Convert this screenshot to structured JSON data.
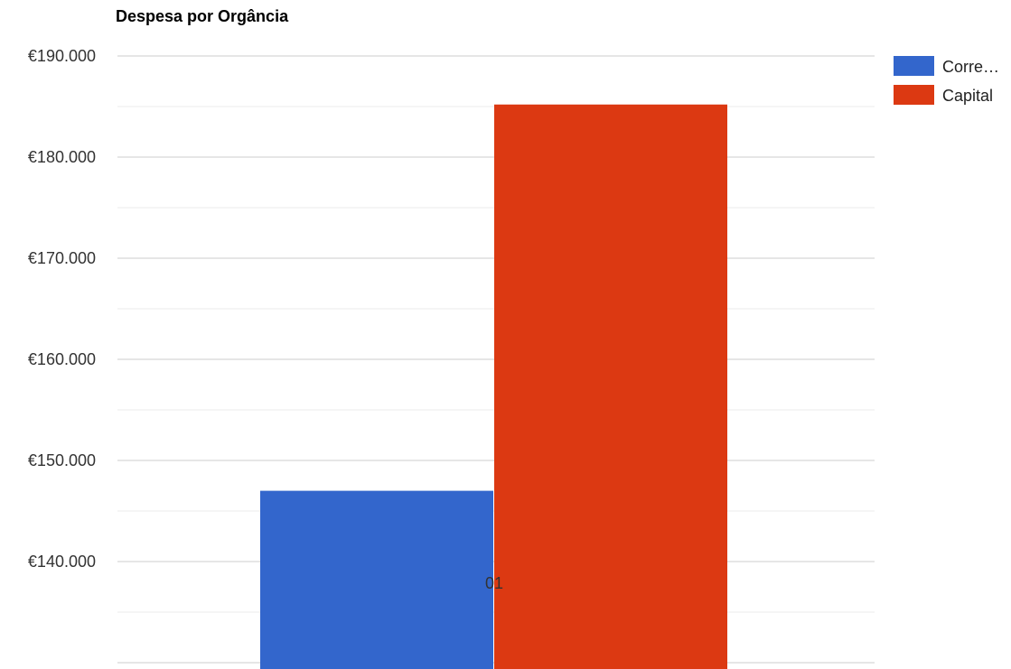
{
  "chart_data": {
    "type": "bar",
    "title": "Despesa por Orgância",
    "categories": [
      "01"
    ],
    "series": [
      {
        "name": "Corre…",
        "values": [
          147000
        ],
        "color": "#3366cc"
      },
      {
        "name": "Capital",
        "values": [
          185200
        ],
        "color": "#dc3912"
      }
    ],
    "ylim": [
      130000,
      190000
    ],
    "yticks": [
      140000,
      150000,
      160000,
      170000,
      180000,
      190000
    ],
    "ytick_labels": [
      "€140.000",
      "€150.000",
      "€160.000",
      "€170.000",
      "€180.000",
      "€190.000"
    ],
    "grid": true,
    "legend": "right"
  }
}
